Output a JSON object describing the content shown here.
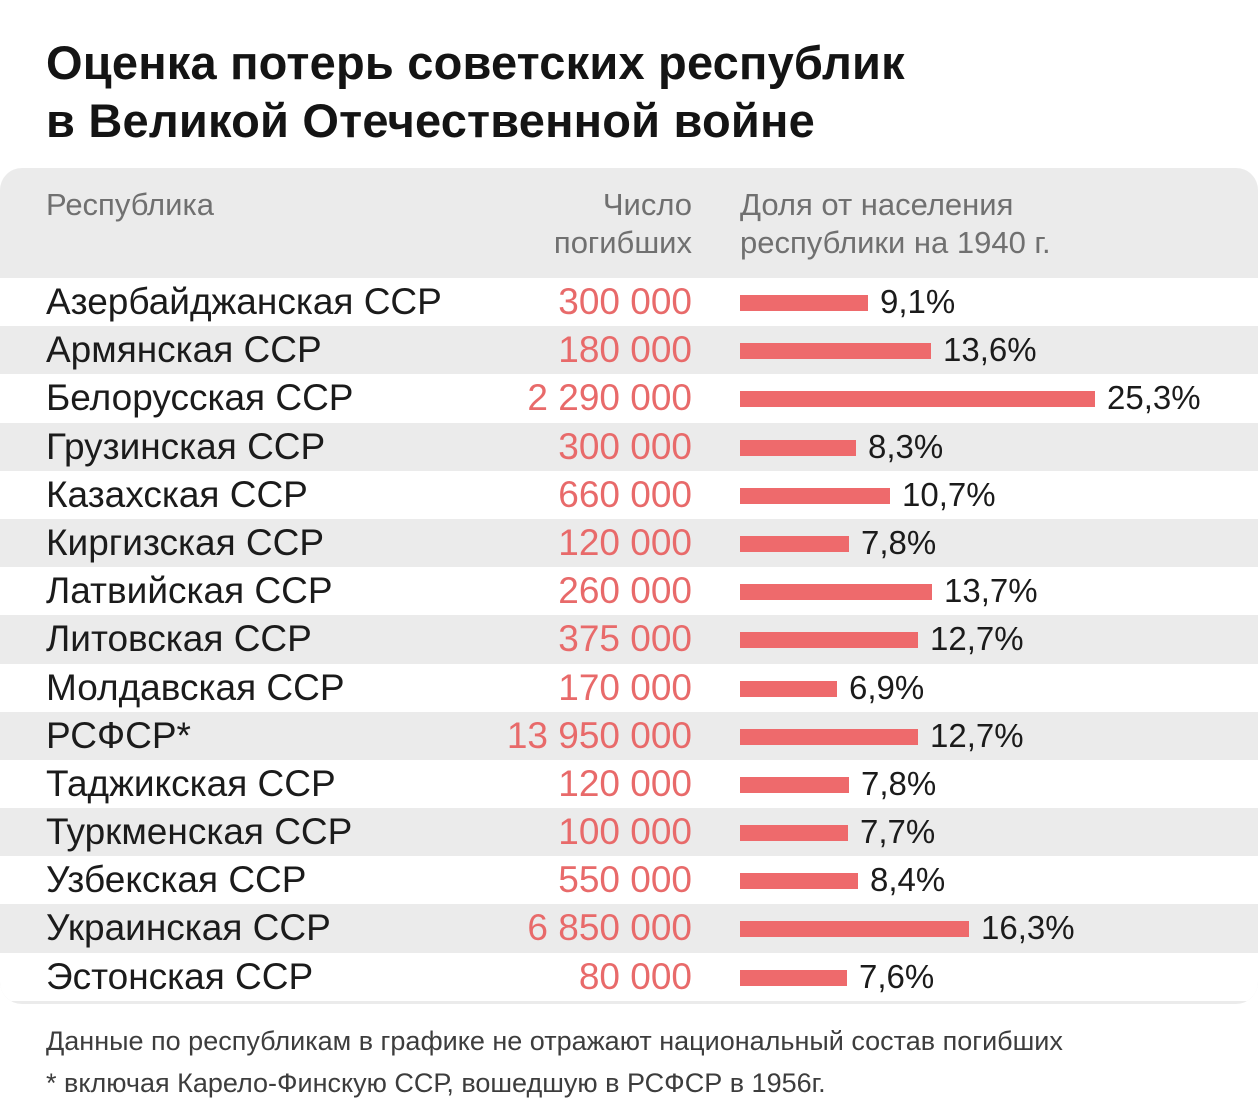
{
  "title": "Оценка потерь советских республик\nв Великой Отечественной войне",
  "header": {
    "col_republic": "Республика",
    "col_deaths": "Число\nпогибших",
    "col_share": "Доля от населения\nреспублики на 1940 г."
  },
  "colors": {
    "bar": "#ee6a6c",
    "deaths_text": "#e86a6a",
    "panel_bg": "#ebebeb"
  },
  "chart_data": {
    "type": "bar",
    "orientation": "horizontal",
    "title": "Оценка потерь советских республик в Великой Отечественной войне",
    "categories": [
      "Азербайджанская ССР",
      "Армянская ССР",
      "Белорусская ССР",
      "Грузинская ССР",
      "Казахская ССР",
      "Киргизская ССР",
      "Латвийская ССР",
      "Литовская ССР",
      "Молдавская ССР",
      "РСФСР*",
      "Таджикская ССР",
      "Туркменская ССР",
      "Узбекская ССР",
      "Украинская ССР",
      "Эстонская ССР"
    ],
    "deaths": [
      "300 000",
      "180 000",
      "2 290 000",
      "300 000",
      "660 000",
      "120 000",
      "260 000",
      "375 000",
      "170 000",
      "13 950 000",
      "120 000",
      "100 000",
      "550 000",
      "6 850 000",
      "80 000"
    ],
    "values": [
      9.1,
      13.6,
      25.3,
      8.3,
      10.7,
      7.8,
      13.7,
      12.7,
      6.9,
      12.7,
      7.8,
      7.7,
      8.4,
      16.3,
      7.6
    ],
    "value_labels": [
      "9,1%",
      "13,6%",
      "25,3%",
      "8,3%",
      "10,7%",
      "7,8%",
      "13,7%",
      "12,7%",
      "6,9%",
      "12,7%",
      "7,8%",
      "7,7%",
      "8,4%",
      "16,3%",
      "7,6%"
    ],
    "xlim": [
      0,
      25.3
    ]
  },
  "footer": {
    "note1": "Данные по республикам в графике не отражают национальный состав погибших",
    "note2": "* включая Карело-Финскую ССР, вошедшую в РСФСР в 1956г."
  }
}
